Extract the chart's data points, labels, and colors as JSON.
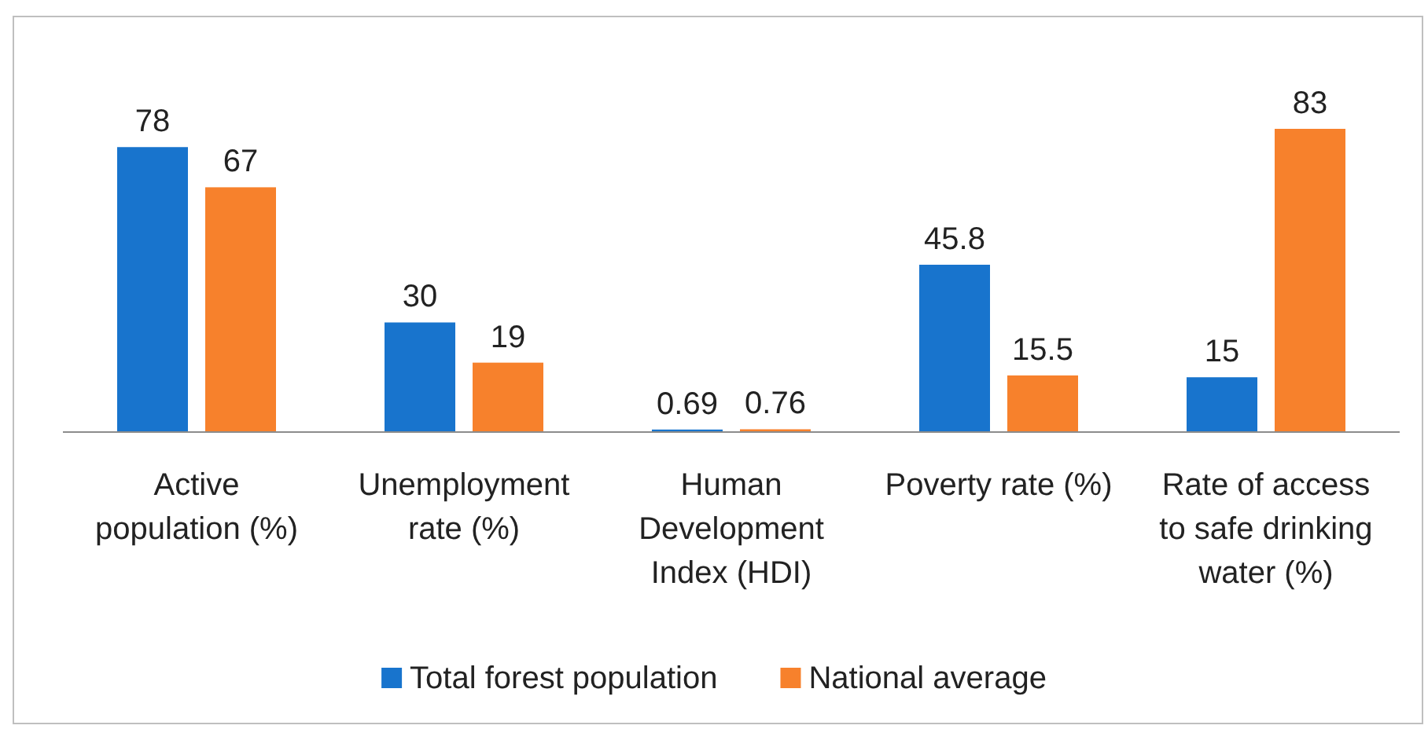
{
  "chart_data": {
    "type": "bar",
    "categories": [
      "Active population (%)",
      "Unemployment rate (%)",
      "Human Development Index (HDI)",
      "Poverty rate (%)",
      "Rate of access to safe drinking water (%)"
    ],
    "series": [
      {
        "name": "Total forest population",
        "color": "#1874cd",
        "values": [
          78,
          30,
          0.69,
          45.8,
          15
        ]
      },
      {
        "name": "National average",
        "color": "#f7812c",
        "values": [
          67,
          19,
          0.76,
          15.5,
          83
        ]
      }
    ],
    "data_labels": true,
    "legend": "bottom",
    "grid": false
  }
}
